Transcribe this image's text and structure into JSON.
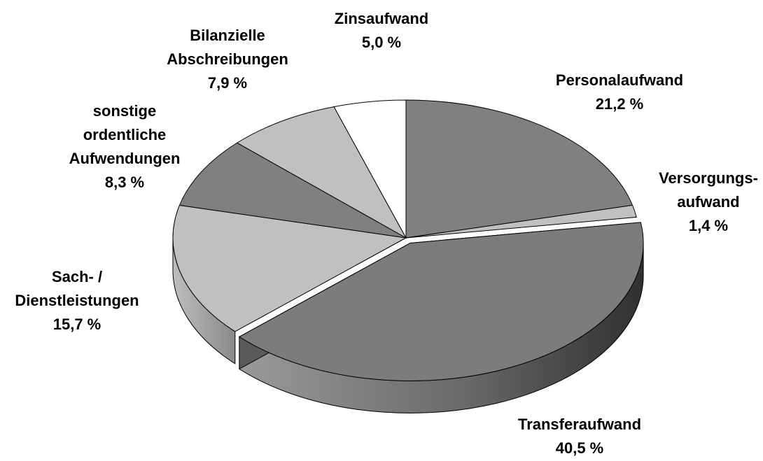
{
  "chart_data": {
    "type": "pie",
    "categories": [
      "Personalaufwand",
      "Versorgungs-\naufwand",
      "Transferaufwand",
      "Sach- /\nDienstleistungen",
      "sonstige\nordentliche\nAufwendungen",
      "Bilanzielle\nAbschreibungen",
      "Zinsaufwand"
    ],
    "values": [
      21.2,
      1.4,
      40.5,
      15.7,
      8.3,
      7.9,
      5.0
    ],
    "value_labels": [
      "21,2 %",
      "1,4 %",
      "40,5 %",
      "15,7 %",
      "8,3 %",
      "7,9 %",
      "5,0 %"
    ],
    "colors": [
      "#808080",
      "#c0c0c0",
      "#7c7c7c",
      "#c0c0c0",
      "#808080",
      "#c0c0c0",
      "#ffffff"
    ],
    "three_d": true,
    "exploded": [
      2
    ]
  }
}
